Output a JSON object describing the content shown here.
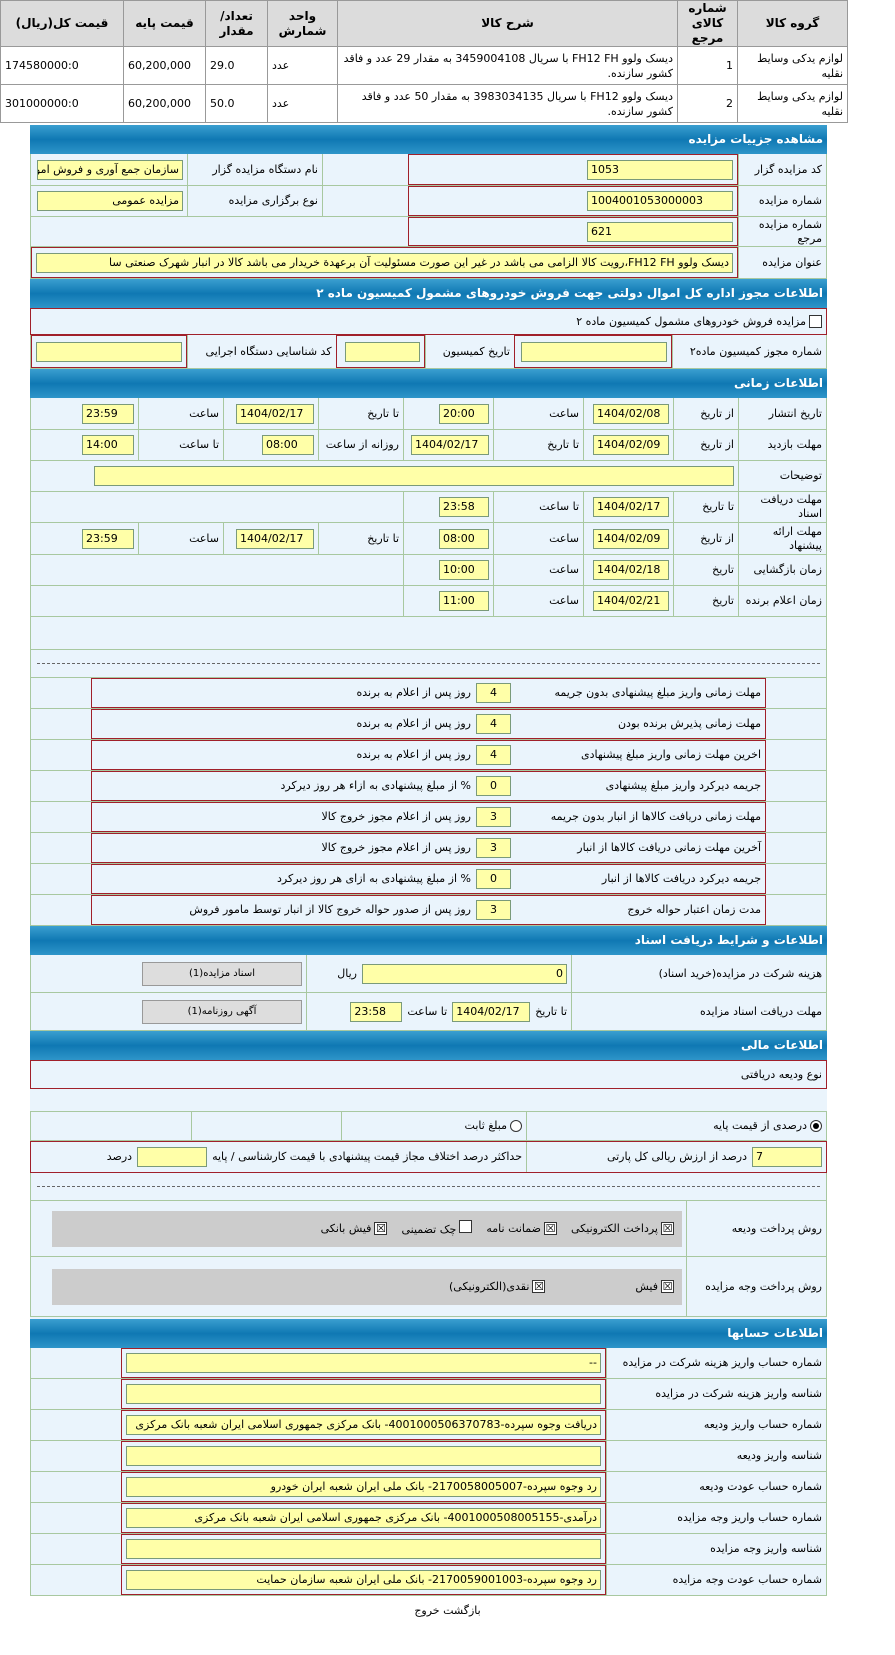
{
  "items_table": {
    "headers": [
      "گروه کالا",
      "شماره کالای مرجع",
      "شرح کالا",
      "واحد شمارش",
      "تعداد/مقدار",
      "قیمت پایه",
      "قیمت کل(ریال)"
    ],
    "rows": [
      [
        "لوازم یدکی وسایط نقلیه",
        "1",
        "دیسک ولوو FH12 FH با سریال 3459004108 به مقدار 29 عدد و فاقد کشور سازنده.",
        "عدد",
        "29.0",
        "60,200,000",
        "174580000:0"
      ],
      [
        "لوازم یدکی وسایط نقلیه",
        "2",
        "دیسک ولوو FH12 با سریال 3983034135 به مقدار 50 عدد و فاقد کشور سازنده.",
        "عدد",
        "50.0",
        "60,200,000",
        "301000000:0"
      ]
    ]
  },
  "details": {
    "title": "مشاهده جزییات مزایده",
    "code_label": "کد مزایده گزار",
    "code": "1053",
    "org_label": "نام دستگاه مزایده گزار",
    "org": "سازمان جمع آوری و فروش امو",
    "number_label": "شماره مزایده",
    "number": "1004001053000003",
    "type_label": "نوع برگزاری مزایده",
    "type": "مزایده عمومی",
    "ref_label": "شماره مزایده مرجع",
    "ref": "621",
    "subject_label": "عنوان مزایده",
    "subject": "دیسک ولوو FH12 FH،رویت کالا الزامی می باشد در غیر این صورت مسئولیت آن برعهدة خریدار می باشد کالا در انبار شهرک صنعتی سا"
  },
  "permit": {
    "title": "اطلاعات مجوز اداره کل اموال دولتی جهت فروش خودروهای مشمول کمیسیون ماده ۲",
    "checkbox_label": "مزایده فروش خودروهای مشمول کمیسیون ماده ۲",
    "permit_no_label": "شماره مجوز کمیسیون ماده۲",
    "date_label": "تاریخ کمیسیون",
    "exec_code_label": "کد شناسایی دستگاه اجرایی"
  },
  "timing": {
    "title": "اطلاعات زمانی",
    "from_date": "از تاریخ",
    "to_date": "تا تاریخ",
    "time": "ساعت",
    "to_time": "تا ساعت",
    "daily_from": "روزانه از ساعت",
    "date": "تاریخ",
    "publish_label": "تاریخ انتشار",
    "publish_from": "1404/02/08",
    "publish_from_time": "20:00",
    "publish_to": "1404/02/17",
    "publish_to_time": "23:59",
    "visit_label": "مهلت بازدید",
    "visit_from": "1404/02/09",
    "visit_to": "1404/02/17",
    "visit_from_time": "08:00",
    "visit_to_time": "14:00",
    "desc_label": "توضیحات",
    "docs_label": "مهلت دریافت اسناد",
    "docs_to": "1404/02/17",
    "docs_time": "23:58",
    "offer_label": "مهلت ارائه پیشنهاد",
    "offer_from": "1404/02/09",
    "offer_from_time": "08:00",
    "offer_to": "1404/02/17",
    "offer_to_time": "23:59",
    "open_label": "زمان بازگشایی",
    "open_date": "1404/02/18",
    "open_time": "10:00",
    "winner_label": "زمان اعلام برنده",
    "winner_date": "1404/02/21",
    "winner_time": "11:00"
  },
  "deadlines": [
    {
      "label": "مهلت زمانی واریز مبلغ پیشنهادی بدون جریمه",
      "value": "4",
      "suffix": "روز پس از اعلام به برنده"
    },
    {
      "label": "مهلت زمانی پذیرش برنده بودن",
      "value": "4",
      "suffix": "روز پس از اعلام به برنده"
    },
    {
      "label": "اخرین مهلت زمانی واریز مبلغ پیشنهادی",
      "value": "4",
      "suffix": "روز پس از اعلام به برنده"
    },
    {
      "label": "جریمه دیرکرد واریز مبلغ پیشنهادی",
      "value": "0",
      "suffix": "% از مبلغ پیشنهادی به ازاء هر روز دیرکرد"
    },
    {
      "label": "مهلت زمانی دریافت کالاها از انبار بدون جریمه",
      "value": "3",
      "suffix": "روز پس از اعلام مجوز خروج کالا"
    },
    {
      "label": "آخرین مهلت زمانی دریافت کالاها از انبار",
      "value": "3",
      "suffix": "روز پس از اعلام مجوز خروج کالا"
    },
    {
      "label": "جریمه دیرکرد دریافت کالاها از انبار",
      "value": "0",
      "suffix": "% از مبلغ پیشنهادی به ازای هر روز دیرکرد"
    },
    {
      "label": "مدت زمان اعتبار حواله خروج",
      "value": "3",
      "suffix": "روز پس از صدور حواله خروج کالا از انبار توسط مامور فروش"
    }
  ],
  "documents": {
    "title": "اطلاعات و شرایط دریافت اسناد",
    "fee_label": "هزینه شرکت در مزایده(خرید اسناد)",
    "fee": "0",
    "currency": "ریال",
    "docs_button": "اسناد مزایده(1)",
    "deadline_label": "مهلت دریافت اسناد مزایده",
    "to_date_label": "تا تاریخ",
    "date": "1404/02/17",
    "to_time_label": "تا ساعت",
    "time": "23:58",
    "ad_button": "آگهی روزنامه(1)"
  },
  "financial": {
    "title": "اطلاعات مالی",
    "deposit_type_label": "نوع ودیعه دریافتی",
    "opt_percent": "درصدی از قیمت پایه",
    "opt_fixed": "مبلغ ثابت",
    "selected": "درصدی از قیمت پایه",
    "percent": "7",
    "percent_label": "درصد از ارزش ریالی کل پارتی",
    "max_diff_label": "حداکثر درصد اختلاف مجاز قیمت پیشنهادی با قیمت کارشناسی / پایه",
    "max_diff_unit": "درصد",
    "deposit_pay_label": "روش پرداخت ودیعه",
    "deposit_methods": [
      {
        "label": "پرداخت الکترونیکی",
        "checked": true
      },
      {
        "label": "ضمانت نامه",
        "checked": true
      },
      {
        "label": "چک تضمینی",
        "checked": false
      },
      {
        "label": "فیش بانکی",
        "checked": true
      }
    ],
    "payment_label": "روش پرداخت وجه مزایده",
    "payment_methods": [
      {
        "label": "فیش",
        "checked": true
      },
      {
        "label": "نقدی(الکترونیکی)",
        "checked": true
      }
    ]
  },
  "accounts": {
    "title": "اطلاعات حسابها",
    "rows": [
      {
        "label": "شماره حساب واریز هزینه شرکت در مزایده",
        "value": "--"
      },
      {
        "label": "شناسه واریز هزینه شرکت در مزایده",
        "value": ""
      },
      {
        "label": "شماره حساب واریز ودیعه",
        "value": "دریافت وجوه سپرده-4001000506370783- بانک مرکزی جمهوری اسلامی ایران شعبه بانک مرکزی"
      },
      {
        "label": "شناسه واریز ودیعه",
        "value": ""
      },
      {
        "label": "شماره حساب عودت ودیعه",
        "value": "رد وجوه سپرده-2170058005007- بانک ملی ایران شعبه ایران خودرو"
      },
      {
        "label": "شماره حساب واریز وجه مزایده",
        "value": "درآمدی-4001000508005155- بانک مرکزی جمهوری اسلامی ایران شعبه بانک مرکزی"
      },
      {
        "label": "شناسه واریز وجه مزایده",
        "value": ""
      },
      {
        "label": "شماره حساب عودت وجه مزایده",
        "value": "رد وجوه سپرده-2170059001003- بانک ملی ایران شعبه سازمان حمایت"
      }
    ]
  },
  "footer": {
    "back": "بازگشت",
    "exit": "خروج"
  }
}
